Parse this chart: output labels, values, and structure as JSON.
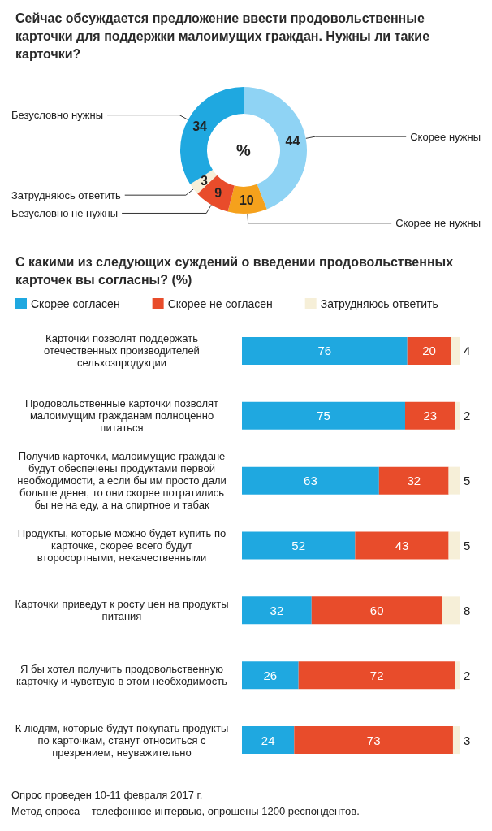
{
  "chart_data": [
    {
      "type": "donut",
      "title": "Сейчас обсуждается предложение ввести продовольственные карточки для поддержки малоимущих граждан. Нужны ли такие карточки?",
      "categories": [
        "Скорее нужны",
        "Скорее не нужны",
        "Безусловно не нужны",
        "Затрудняюсь ответить",
        "Безусловно нужны"
      ],
      "values": [
        44,
        10,
        9,
        3,
        34
      ],
      "colors": [
        "#8fd3f4",
        "#f5a11c",
        "#e84c2b",
        "#f6efd8",
        "#1fa8e0"
      ],
      "data_labels": true,
      "annotations": [
        "%"
      ]
    },
    {
      "type": "bar",
      "orientation": "horizontal",
      "stacked": true,
      "title": "С какими из следующих суждений о введении продовольственных карточек вы согласны? (%)",
      "categories": [
        "Карточки позволят поддержать отечественных производителей сельхозпродукции",
        "Продовольственные карточки позволят малоимущим гражданам полноценно питаться",
        "Получив карточки, малоимущие граждане будут обеспечены продуктами первой необходимости, а если бы им просто дали больше денег, то они скорее потратились бы не на еду, а на спиртное и табак",
        "Продукты, которые можно будет купить по карточке, скорее всего будут второсортными, некачественными",
        "Карточки приведут к росту цен на продукты питания",
        "Я бы хотел получить продовольственную карточку и чувствую в этом необходимость",
        "К людям, которые будут покупать продукты по карточкам, станут относиться с презрением, неуважительно"
      ],
      "series": [
        {
          "name": "Скорее согласен",
          "color": "#1fa8e0",
          "values": [
            76,
            75,
            63,
            52,
            32,
            26,
            24
          ]
        },
        {
          "name": "Скорее не согласен",
          "color": "#e84c2b",
          "values": [
            20,
            23,
            32,
            43,
            60,
            72,
            73
          ]
        },
        {
          "name": "Затрудняюсь ответить",
          "color": "#f6efd8",
          "values": [
            4,
            2,
            5,
            5,
            8,
            2,
            3
          ]
        }
      ],
      "data_labels": true,
      "legend": "top",
      "tick_labels": "y",
      "annotations": [
        "Опрос проведен 10-11 февраля 2017 г.",
        "Метод опроса – телефонное интервью, опрошены 1200 респондентов."
      ]
    }
  ]
}
